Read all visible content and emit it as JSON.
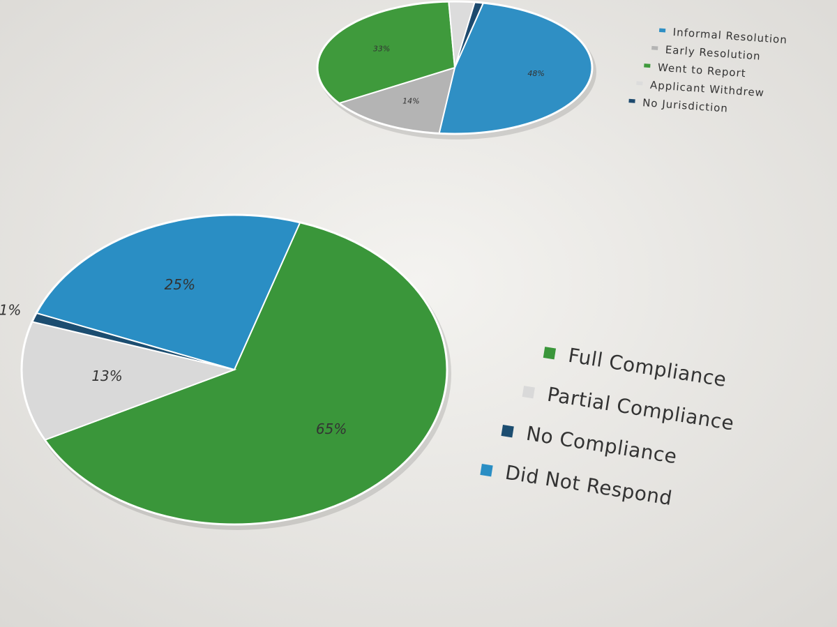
{
  "chart_data": [
    {
      "type": "pie",
      "categories": [
        "Informal Resolution",
        "Early Resolution",
        "Went to Report",
        "Applicant Withdrew",
        "No Jurisdiction"
      ],
      "values": [
        48,
        14,
        33,
        3,
        1
      ],
      "value_labels": [
        "48%",
        "14%",
        "33%",
        null,
        null
      ],
      "colors": [
        "#2f8fc4",
        "#b4b4b4",
        "#3f9a3c",
        "#dcdcdc",
        "#1d4a6e"
      ]
    },
    {
      "type": "pie",
      "categories": [
        "Full Compliance",
        "Partial Compliance",
        "No Compliance",
        "Did Not Respond"
      ],
      "values": [
        65,
        13,
        1,
        25
      ],
      "value_labels": [
        "65%",
        "13%",
        "1%",
        "25%"
      ],
      "colors": [
        "#3a963a",
        "#d9d9d9",
        "#1c4d70",
        "#2a8ec4"
      ]
    }
  ]
}
